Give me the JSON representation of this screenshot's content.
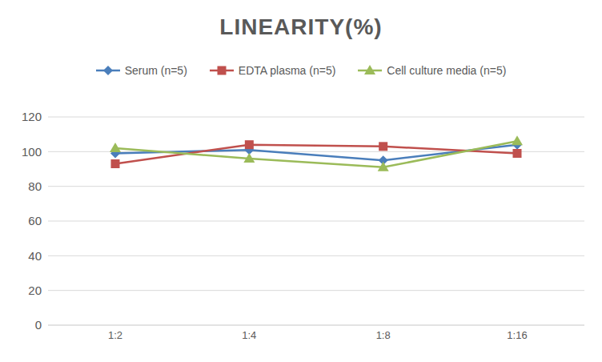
{
  "chart_data": {
    "type": "line",
    "title": "LINEARITY(%)",
    "categories": [
      "1:2",
      "1:4",
      "1:8",
      "1:16"
    ],
    "series": [
      {
        "name": "Serum (n=5)",
        "color": "#4a7ebb",
        "marker": "diamond",
        "values": [
          99,
          101,
          95,
          104
        ]
      },
      {
        "name": "EDTA plasma (n=5)",
        "color": "#c0504d",
        "marker": "square",
        "values": [
          93,
          104,
          103,
          99
        ]
      },
      {
        "name": "Cell culture media (n=5)",
        "color": "#9bbb59",
        "marker": "triangle",
        "values": [
          102,
          96,
          91,
          106
        ]
      }
    ],
    "ylim": [
      0,
      120
    ],
    "yticks": [
      0,
      20,
      40,
      60,
      80,
      100,
      120
    ],
    "grid": true,
    "legend": "top"
  }
}
